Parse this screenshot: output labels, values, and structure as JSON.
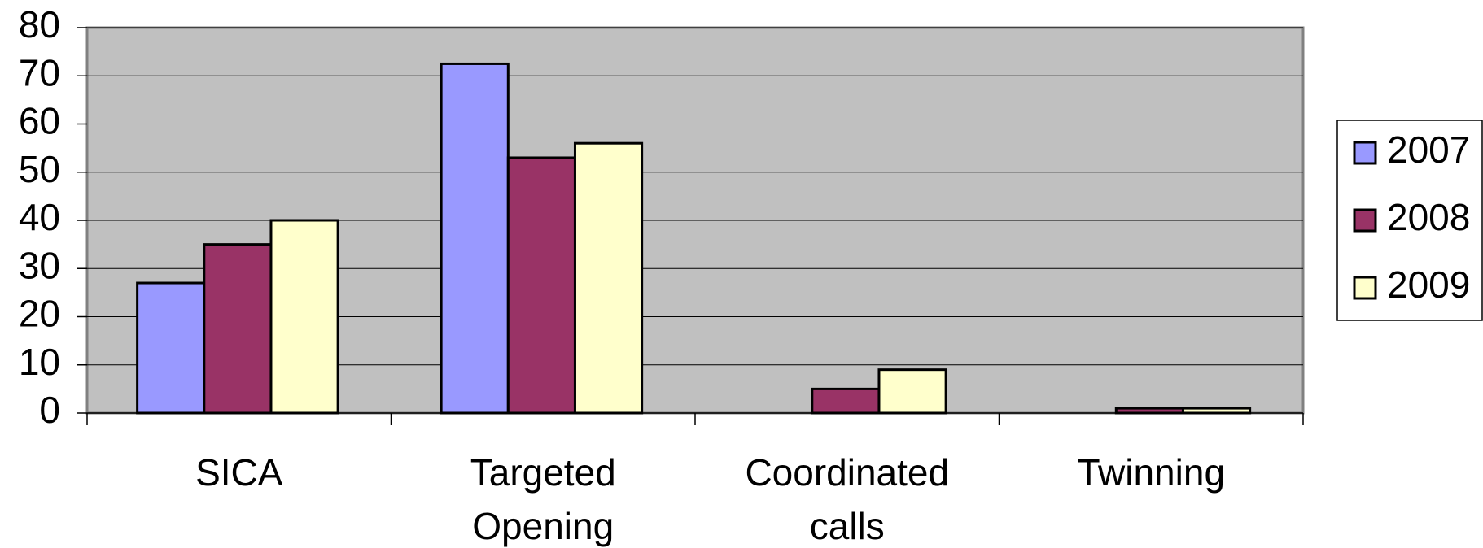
{
  "chart_data": {
    "type": "bar",
    "categories": [
      "SICA",
      "Targeted Opening",
      "Coordinated calls",
      "Twinning"
    ],
    "series": [
      {
        "name": "2007",
        "color": "#9999ff",
        "values": [
          27,
          72.5,
          0,
          0
        ]
      },
      {
        "name": "2008",
        "color": "#993366",
        "values": [
          35,
          53,
          5,
          1
        ]
      },
      {
        "name": "2009",
        "color": "#ffffcc",
        "values": [
          40,
          56,
          9,
          1
        ]
      }
    ],
    "ylim": [
      0,
      80
    ],
    "yticks": [
      0,
      10,
      20,
      30,
      40,
      50,
      60,
      70,
      80
    ],
    "grid": true,
    "legend": "right"
  }
}
